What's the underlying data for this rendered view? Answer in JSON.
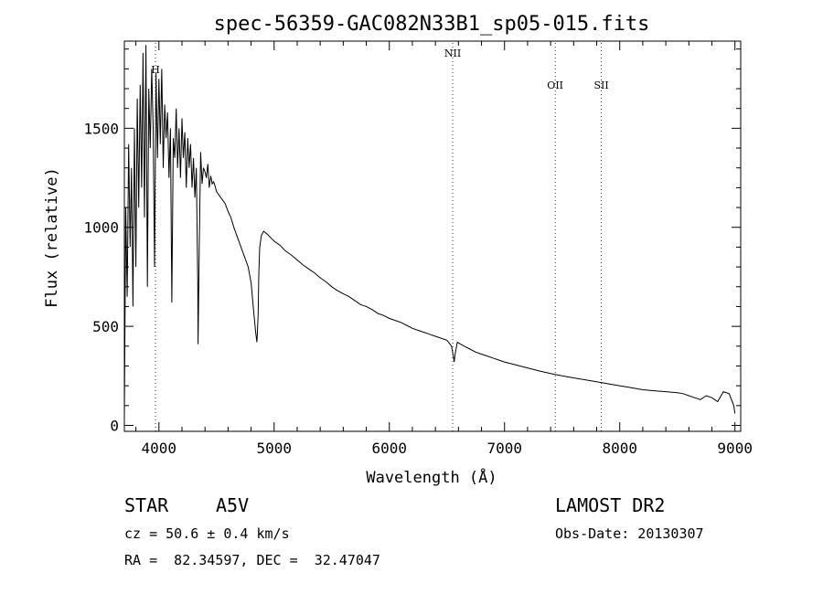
{
  "chart_data": {
    "type": "line",
    "title": "spec-56359-GAC082N33B1_sp05-015.fits",
    "xlabel": "Wavelength (Å)",
    "ylabel": "Flux (relative)",
    "xlim": [
      3700,
      9050
    ],
    "ylim": [
      -30,
      1940
    ],
    "xticks": [
      4000,
      5000,
      6000,
      7000,
      8000,
      9000
    ],
    "yticks": [
      0,
      500,
      1000,
      1500
    ],
    "grid": false,
    "line_color": "#000000",
    "lines": [
      {
        "label": "H",
        "x": 3970
      },
      {
        "label": "NII",
        "x": 6550
      },
      {
        "label": "OII",
        "x": 7440
      },
      {
        "label": "SII",
        "x": 7840
      }
    ],
    "series": [
      {
        "x": [
          3700,
          3712,
          3725,
          3737,
          3750,
          3762,
          3775,
          3787,
          3800,
          3812,
          3825,
          3837,
          3850,
          3862,
          3875,
          3887,
          3900,
          3912,
          3925,
          3937,
          3950,
          3962,
          3975,
          3987,
          4000,
          4012,
          4025,
          4037,
          4050,
          4062,
          4075,
          4087,
          4100,
          4112,
          4125,
          4137,
          4150,
          4162,
          4175,
          4187,
          4200,
          4212,
          4225,
          4237,
          4250,
          4262,
          4275,
          4287,
          4300,
          4312,
          4325,
          4337,
          4340,
          4350,
          4362,
          4375,
          4387,
          4400,
          4412,
          4425,
          4437,
          4450,
          4462,
          4475,
          4487,
          4500,
          4525,
          4550,
          4575,
          4600,
          4625,
          4650,
          4675,
          4700,
          4725,
          4750,
          4775,
          4800,
          4825,
          4840,
          4850,
          4855,
          4861,
          4867,
          4875,
          4890,
          4910,
          4930,
          4950,
          4975,
          5000,
          5050,
          5100,
          5150,
          5200,
          5250,
          5300,
          5350,
          5400,
          5450,
          5500,
          5550,
          5600,
          5650,
          5700,
          5750,
          5800,
          5850,
          5900,
          5950,
          6000,
          6050,
          6100,
          6150,
          6200,
          6250,
          6300,
          6350,
          6400,
          6450,
          6500,
          6540,
          6555,
          6563,
          6571,
          6590,
          6650,
          6700,
          6750,
          6800,
          6850,
          6900,
          6950,
          7000,
          7100,
          7200,
          7300,
          7400,
          7500,
          7600,
          7700,
          7800,
          7900,
          8000,
          8100,
          8200,
          8300,
          8400,
          8500,
          8550,
          8600,
          8650,
          8700,
          8750,
          8800,
          8850,
          8900,
          8950,
          8990,
          9000
        ],
        "values": [
          40,
          1100,
          650,
          1420,
          900,
          1300,
          600,
          1500,
          800,
          1650,
          1100,
          1720,
          1200,
          1880,
          1050,
          1920,
          700,
          1700,
          1400,
          1800,
          1500,
          800,
          1780,
          1350,
          1750,
          1420,
          1800,
          1300,
          1620,
          1450,
          1580,
          1250,
          1500,
          620,
          1450,
          1350,
          1600,
          1300,
          1500,
          1250,
          1550,
          1350,
          1480,
          1200,
          1450,
          1300,
          1420,
          1200,
          1350,
          1150,
          1300,
          700,
          410,
          900,
          1380,
          1220,
          1300,
          1280,
          1250,
          1320,
          1200,
          1260,
          1220,
          1230,
          1210,
          1180,
          1160,
          1140,
          1120,
          1080,
          1050,
          1000,
          960,
          920,
          880,
          840,
          800,
          720,
          560,
          470,
          420,
          470,
          560,
          760,
          900,
          960,
          980,
          970,
          960,
          945,
          930,
          910,
          880,
          860,
          835,
          810,
          790,
          770,
          745,
          725,
          700,
          680,
          665,
          650,
          630,
          610,
          600,
          585,
          565,
          555,
          540,
          530,
          520,
          505,
          490,
          480,
          470,
          460,
          450,
          440,
          430,
          400,
          350,
          320,
          360,
          420,
          400,
          385,
          370,
          360,
          350,
          340,
          330,
          320,
          305,
          290,
          275,
          262,
          250,
          240,
          230,
          220,
          210,
          200,
          190,
          180,
          175,
          170,
          165,
          160,
          150,
          140,
          130,
          150,
          140,
          120,
          170,
          160,
          100,
          60
        ]
      }
    ]
  },
  "info": {
    "object_class": "STAR",
    "subclass": "A5V",
    "survey": "LAMOST DR2",
    "cz": "cz = 50.6 ± 0.4 km/s",
    "obs_date": "Obs-Date: 20130307",
    "coords": "RA =  82.34597, DEC =  32.47047"
  }
}
